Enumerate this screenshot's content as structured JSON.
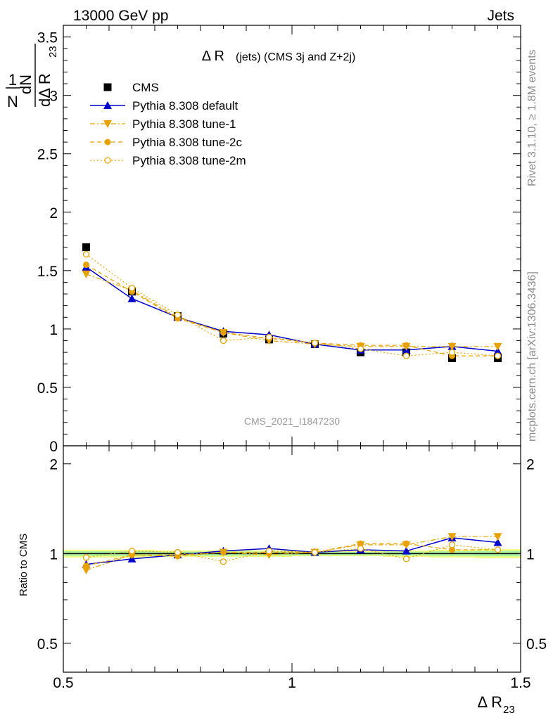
{
  "header": {
    "left": "13000 GeV pp",
    "right": "Jets"
  },
  "side_labels": {
    "rivet": "Rivet 3.1.10, ≥ 1.8M events",
    "mcplots": "mcplots.cern.ch [arXiv:1306.3436]"
  },
  "chart_data": [
    {
      "type": "scatter",
      "title": "Δ R (jets) (CMS 3j and Z+2j)",
      "title_main": "Δ R",
      "title_sub": "(jets) (CMS 3j and Z+2j)",
      "watermark": "CMS_2021_I1847230",
      "ylabel": "1/N dN/dΔ R23",
      "ylabel_parts": {
        "one": "1",
        "N": "N",
        "dN": "dN",
        "d": "dΔ R",
        "sub": "23"
      },
      "xlim": [
        0.5,
        1.5
      ],
      "ylim": [
        0,
        3.6
      ],
      "yticks": [
        {
          "v": 0,
          "label": "0"
        },
        {
          "v": 0.5,
          "label": "0.5"
        },
        {
          "v": 1,
          "label": "1"
        },
        {
          "v": 1.5,
          "label": "1.5"
        },
        {
          "v": 2,
          "label": "2"
        },
        {
          "v": 2.5,
          "label": "2.5"
        },
        {
          "v": 3,
          "label": "3"
        },
        {
          "v": 3.5,
          "label": "3.5"
        }
      ],
      "legend_position": "top-left",
      "x": [
        0.55,
        0.65,
        0.75,
        0.85,
        0.95,
        1.05,
        1.15,
        1.25,
        1.35,
        1.45
      ],
      "series": [
        {
          "name": "CMS",
          "color": "#000000",
          "marker": "square",
          "line": "none",
          "values": [
            1.7,
            1.32,
            1.11,
            0.96,
            0.91,
            0.87,
            0.8,
            0.8,
            0.75,
            0.75
          ]
        },
        {
          "name": "Pythia 8.308 default",
          "color": "#0000cc",
          "marker": "triangle-up",
          "line": "solid",
          "values": [
            1.53,
            1.26,
            1.1,
            0.98,
            0.95,
            0.87,
            0.82,
            0.82,
            0.85,
            0.81
          ]
        },
        {
          "name": "Pythia 8.308 tune-1",
          "color": "#e8a200",
          "marker": "triangle-down",
          "line": "dashdot",
          "values": [
            1.47,
            1.33,
            1.1,
            0.97,
            0.9,
            0.87,
            0.85,
            0.85,
            0.85,
            0.85
          ]
        },
        {
          "name": "Pythia 8.308 tune-2c",
          "color": "#e8a200",
          "marker": "circle-filled",
          "line": "dashed",
          "values": [
            1.55,
            1.32,
            1.09,
            0.97,
            0.92,
            0.88,
            0.86,
            0.86,
            0.77,
            0.77
          ]
        },
        {
          "name": "Pythia 8.308 tune-2m",
          "color": "#e8a200",
          "marker": "circle-open",
          "line": "dotted",
          "values": [
            1.64,
            1.35,
            1.12,
            0.9,
            0.93,
            0.88,
            0.83,
            0.77,
            0.8,
            0.77
          ]
        }
      ]
    },
    {
      "type": "scatter",
      "ylabel": "Ratio to CMS",
      "xlabel": "Δ R23",
      "xlabel_parts": {
        "main": "Δ R",
        "sub": "23"
      },
      "xlim": [
        0.5,
        1.5
      ],
      "ylim": [
        0.4,
        2.3
      ],
      "log_y": true,
      "xticks": [
        {
          "v": 0.5,
          "label": "0.5"
        },
        {
          "v": 1,
          "label": "1"
        },
        {
          "v": 1.5,
          "label": "1.5"
        }
      ],
      "yticks": [
        {
          "v": 0.5,
          "label": "0.5"
        },
        {
          "v": 1,
          "label": "1"
        },
        {
          "v": 2,
          "label": "2"
        }
      ],
      "band_colors": {
        "outer": "#f0ff80",
        "inner": "#a8f0a0"
      },
      "band_halfwidth": [
        0.03,
        0.03,
        0.025,
        0.025,
        0.025,
        0.02,
        0.02,
        0.025,
        0.03,
        0.035
      ],
      "x": [
        0.55,
        0.65,
        0.75,
        0.85,
        0.95,
        1.05,
        1.15,
        1.25,
        1.35,
        1.45
      ],
      "series": [
        {
          "name": "Pythia 8.308 default",
          "color": "#0000cc",
          "marker": "triangle-up",
          "line": "solid",
          "values": [
            0.92,
            0.96,
            0.99,
            1.02,
            1.04,
            1.01,
            1.03,
            1.02,
            1.13,
            1.09
          ]
        },
        {
          "name": "Pythia 8.308 tune-1",
          "color": "#e8a200",
          "marker": "triangle-down",
          "line": "dashdot",
          "values": [
            0.88,
            0.99,
            0.99,
            1.01,
            0.99,
            1.01,
            1.07,
            1.07,
            1.14,
            1.14
          ]
        },
        {
          "name": "Pythia 8.308 tune-2c",
          "color": "#e8a200",
          "marker": "circle-filled",
          "line": "dashed",
          "values": [
            0.91,
            0.99,
            0.98,
            1.01,
            1.01,
            1.01,
            1.08,
            1.08,
            1.03,
            1.03
          ]
        },
        {
          "name": "Pythia 8.308 tune-2m",
          "color": "#e8a200",
          "marker": "circle-open",
          "line": "dotted",
          "values": [
            0.97,
            1.02,
            1.01,
            0.94,
            1.02,
            1.01,
            1.04,
            0.96,
            1.07,
            1.03
          ]
        }
      ]
    }
  ]
}
